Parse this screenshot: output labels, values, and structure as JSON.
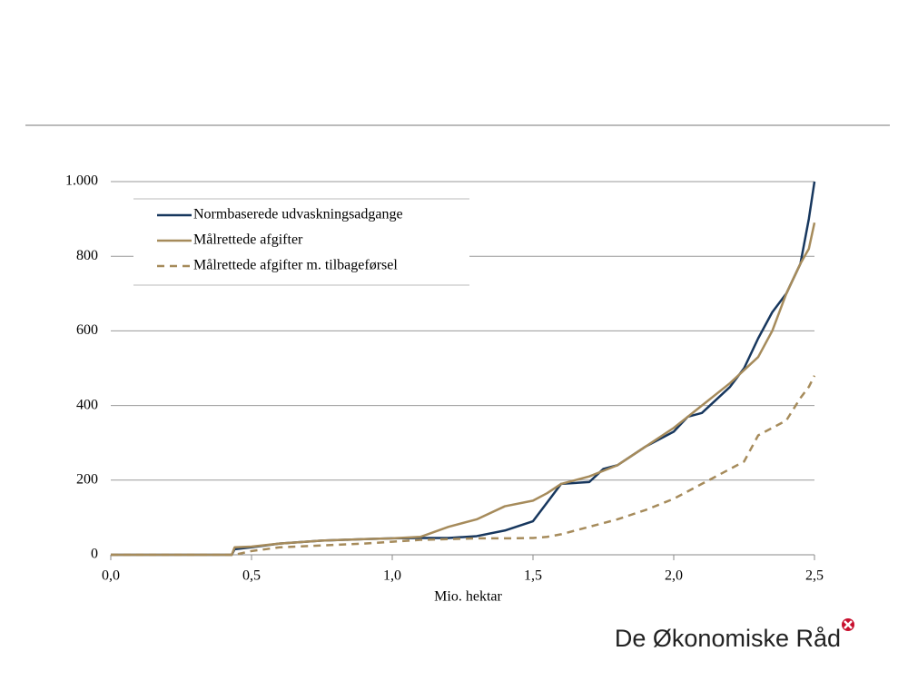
{
  "chart_data": {
    "type": "line",
    "xlabel": "Mio. hektar",
    "x": [
      0,
      0.43,
      0.44,
      0.5,
      0.6,
      0.75,
      0.9,
      1.0,
      1.1,
      1.2,
      1.3,
      1.4,
      1.5,
      1.55,
      1.6,
      1.7,
      1.75,
      1.8,
      1.9,
      2.0,
      2.05,
      2.1,
      2.2,
      2.25,
      2.3,
      2.35,
      2.4,
      2.45,
      2.48,
      2.5
    ],
    "series": [
      {
        "name": "Normbaserede udvaskningsadgange",
        "color": "#17375e",
        "linestyle": "solid",
        "values": [
          0,
          0,
          15,
          20,
          30,
          38,
          42,
          44,
          45,
          45,
          50,
          65,
          90,
          140,
          190,
          195,
          230,
          240,
          290,
          330,
          370,
          380,
          450,
          500,
          580,
          650,
          700,
          780,
          900,
          1000
        ]
      },
      {
        "name": "Målrettede afgifter",
        "color": "#a68b5b",
        "linestyle": "solid",
        "values": [
          0,
          0,
          20,
          22,
          30,
          38,
          42,
          44,
          48,
          75,
          95,
          130,
          145,
          165,
          190,
          210,
          225,
          240,
          290,
          340,
          370,
          400,
          460,
          495,
          530,
          600,
          700,
          780,
          820,
          890
        ]
      },
      {
        "name": "Målrettede afgifter m. tilbageførsel",
        "color": "#a68b5b",
        "linestyle": "dashed",
        "values": [
          0,
          0,
          0,
          10,
          20,
          25,
          30,
          35,
          40,
          42,
          44,
          44,
          45,
          48,
          55,
          75,
          85,
          95,
          120,
          150,
          170,
          190,
          230,
          250,
          320,
          340,
          360,
          420,
          450,
          480
        ]
      }
    ],
    "xlim": [
      0,
      2.5
    ],
    "xticks": [
      {
        "value": 0,
        "label": "0,0"
      },
      {
        "value": 0.5,
        "label": "0,5"
      },
      {
        "value": 1.0,
        "label": "1,0"
      },
      {
        "value": 1.5,
        "label": "1,5"
      },
      {
        "value": 2.0,
        "label": "2,0"
      },
      {
        "value": 2.5,
        "label": "2,5"
      }
    ],
    "ylim": [
      0,
      1000
    ],
    "yticks": [
      0,
      200,
      400,
      600,
      800,
      {
        "value": 1000,
        "label": "1.000"
      }
    ],
    "grid": true,
    "legend": "upper left"
  },
  "footer": {
    "logo": "De Økonomiske Råd"
  }
}
